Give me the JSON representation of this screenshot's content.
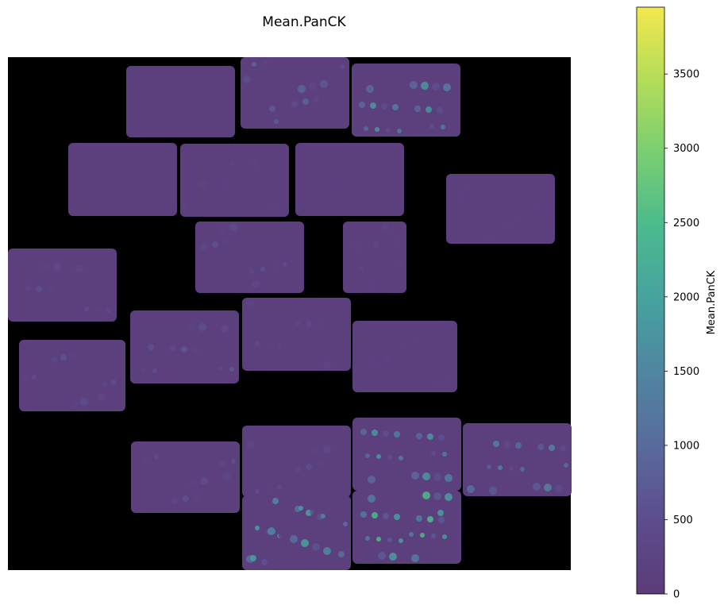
{
  "chart_data": {
    "type": "heatmap",
    "title": "Mean.PanCK",
    "colorbar": {
      "label": "Mean.PanCK",
      "min": 0,
      "max": 3950,
      "ticks": [
        0,
        500,
        1000,
        1500,
        2000,
        2500,
        3000,
        3500
      ],
      "tick_labels": [
        "0",
        "500",
        "1000",
        "1500",
        "2000",
        "2500",
        "3000",
        "3500"
      ],
      "colormap": "viridis"
    },
    "background_color": "#000000",
    "base_level": 120,
    "tiles": [
      {
        "id": "t1",
        "row": 1,
        "col": 1,
        "level": 120
      },
      {
        "id": "t2",
        "row": 1,
        "col": 2,
        "level": 900
      },
      {
        "id": "t3",
        "row": 1,
        "col": 3,
        "level": 1800
      },
      {
        "id": "t4",
        "row": 2,
        "col": 1,
        "level": 150
      },
      {
        "id": "t5",
        "row": 2,
        "col": 2,
        "level": 250
      },
      {
        "id": "t6",
        "row": 2,
        "col": 3,
        "level": 150
      },
      {
        "id": "t7",
        "row": 2,
        "col": 4,
        "level": 200
      },
      {
        "id": "t8",
        "row": 3,
        "col": 1,
        "level": 600
      },
      {
        "id": "t9",
        "row": 3,
        "col": 2,
        "level": 300
      },
      {
        "id": "t10",
        "row": 4,
        "col": 1,
        "level": 500
      },
      {
        "id": "t11",
        "row": 4,
        "col": 2,
        "level": 700
      },
      {
        "id": "t12",
        "row": 4,
        "col": 3,
        "level": 400
      },
      {
        "id": "t13",
        "row": 4,
        "col": 4,
        "level": 200
      },
      {
        "id": "t14",
        "row": 5,
        "col": 1,
        "level": 600
      },
      {
        "id": "t15",
        "row": 5,
        "col": 2,
        "level": 600
      },
      {
        "id": "t16",
        "row": 6,
        "col": 1,
        "level": 500
      },
      {
        "id": "t17",
        "row": 6,
        "col": 2,
        "level": 1800
      },
      {
        "id": "t18",
        "row": 6,
        "col": 3,
        "level": 1400
      },
      {
        "id": "t19",
        "row": 7,
        "col": 1,
        "level": 2000
      },
      {
        "id": "t20",
        "row": 7,
        "col": 2,
        "level": 2500
      }
    ]
  }
}
